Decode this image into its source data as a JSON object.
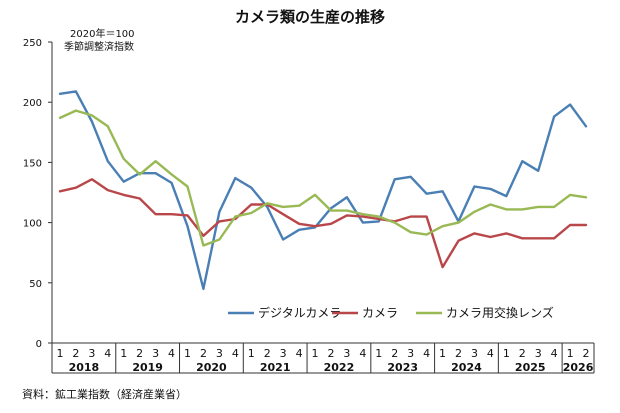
{
  "chart_data": {
    "type": "line",
    "title": "カメラ類の生産の推移",
    "note_lines": [
      "2020年＝100",
      "季節調整済指数"
    ],
    "source": "資料：鉱工業指数（経済産業省）",
    "ylim": [
      0,
      250
    ],
    "yticks": [
      0,
      50,
      100,
      150,
      200,
      250
    ],
    "grid": false,
    "legend_position": "bottom-center",
    "years": [
      {
        "label": "2018",
        "quarters": [
          "1",
          "2",
          "3",
          "4"
        ]
      },
      {
        "label": "2019",
        "quarters": [
          "1",
          "2",
          "3",
          "4"
        ]
      },
      {
        "label": "2020",
        "quarters": [
          "1",
          "2",
          "3",
          "4"
        ]
      },
      {
        "label": "2021",
        "quarters": [
          "1",
          "2",
          "3",
          "4"
        ]
      },
      {
        "label": "2022",
        "quarters": [
          "1",
          "2",
          "3",
          "4"
        ]
      },
      {
        "label": "2023",
        "quarters": [
          "1",
          "2",
          "3",
          "4"
        ]
      },
      {
        "label": "2024",
        "quarters": [
          "1",
          "2",
          "3",
          "4"
        ]
      },
      {
        "label": "2025",
        "quarters": [
          "1",
          "2",
          "3",
          "4"
        ]
      },
      {
        "label": "2026",
        "quarters": [
          "1",
          "2"
        ]
      }
    ],
    "series": [
      {
        "name": "デジタルカメラ",
        "color": "#4a7fb5",
        "values": [
          207,
          209,
          184,
          151,
          134,
          141,
          141,
          133,
          97,
          45,
          109,
          137,
          129,
          113,
          86,
          94,
          96,
          112,
          121,
          100,
          101,
          136,
          138,
          124,
          126,
          101,
          130,
          128,
          122,
          151,
          143,
          188,
          198,
          180
        ]
      },
      {
        "name": "カメラ",
        "color": "#b9474a",
        "values": [
          126,
          129,
          136,
          127,
          123,
          120,
          107,
          107,
          106,
          89,
          101,
          103,
          115,
          115,
          107,
          99,
          97,
          99,
          106,
          105,
          103,
          101,
          105,
          105,
          63,
          85,
          91,
          88,
          91,
          87,
          87,
          87,
          98,
          98
        ]
      },
      {
        "name": "カメラ用交換レンズ",
        "color": "#98b954",
        "values": [
          187,
          193,
          189,
          180,
          153,
          140,
          151,
          140,
          130,
          81,
          86,
          105,
          108,
          116,
          113,
          114,
          123,
          110,
          110,
          107,
          105,
          100,
          92,
          90,
          97,
          100,
          109,
          115,
          111,
          111,
          113,
          113,
          123,
          121
        ]
      }
    ]
  }
}
